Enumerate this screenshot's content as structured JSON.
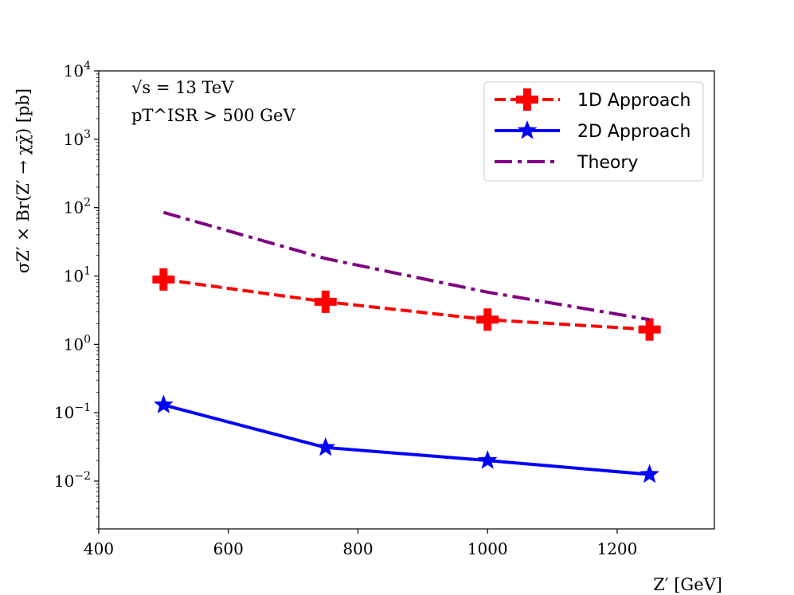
{
  "chart_data": {
    "type": "line",
    "xlabel": "Z′ [GeV]",
    "ylabel": "σZ′ × Br(Z′ → χχ̄) [pb]",
    "x_ticks": [
      "400",
      "600",
      "800",
      "1000",
      "1200"
    ],
    "y_ticks": [
      {
        "base": "10",
        "exp": "−2"
      },
      {
        "base": "10",
        "exp": "−1"
      },
      {
        "base": "10",
        "exp": "0"
      },
      {
        "base": "10",
        "exp": "1"
      },
      {
        "base": "10",
        "exp": "2"
      },
      {
        "base": "10",
        "exp": "3"
      },
      {
        "base": "10",
        "exp": "4"
      }
    ],
    "xlim": [
      400,
      1350
    ],
    "ylim": [
      0.002,
      10000
    ],
    "yscale": "log",
    "grid": false,
    "legend_position": "top-right",
    "annotations": [
      "√s = 13 TeV",
      "pT^ISR > 500 GeV"
    ],
    "x": [
      500,
      750,
      1000,
      1250
    ],
    "series": [
      {
        "name": "1D Approach",
        "x": [
          500,
          750,
          1000,
          1250
        ],
        "values": [
          8.9,
          4.2,
          2.3,
          1.65
        ],
        "color": "#ff0000",
        "linestyle": "dashed",
        "marker": "plus"
      },
      {
        "name": "2D Approach",
        "x": [
          500,
          750,
          1000,
          1250
        ],
        "values": [
          0.13,
          0.031,
          0.02,
          0.0125
        ],
        "color": "#0000ff",
        "linestyle": "solid",
        "marker": "star"
      },
      {
        "name": "Theory",
        "x": [
          500,
          750,
          1000,
          1250
        ],
        "values": [
          85,
          18,
          5.8,
          2.3
        ],
        "color": "#800080",
        "linestyle": "dashdot",
        "marker": "none"
      }
    ]
  }
}
